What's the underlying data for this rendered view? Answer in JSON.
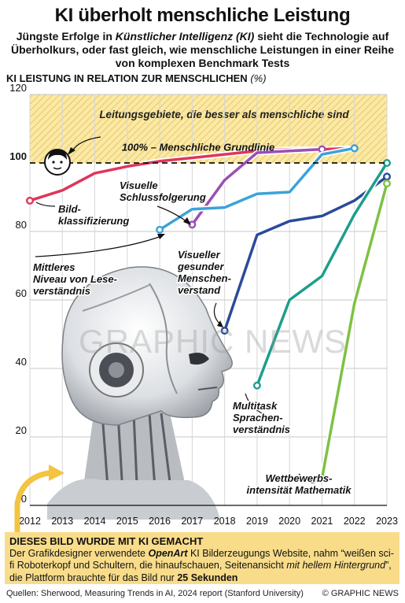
{
  "title": "KI überholt menschliche Leistung",
  "subtitle": {
    "part1": "Jüngste  Erfolge in ",
    "em": "Künstlicher Intelligenz (KI)",
    "part2": " sieht die Technologie auf Überholkurs, oder fast gleich, wie menschliche Leistungen in einer Reihe von komplexen Benchmark Tests"
  },
  "chart_label": {
    "main": "KI LEISTUNG IN RELATION ZUR MENSCHLICHEN",
    "unit": "(%)"
  },
  "chart_data": {
    "type": "line",
    "ylim": [
      0,
      120
    ],
    "xlim": [
      2012,
      2023
    ],
    "yticks": [
      0,
      20,
      40,
      60,
      80,
      100,
      120
    ],
    "x": [
      "2012",
      "2013",
      "2014",
      "2015",
      "2016",
      "2017",
      "2018",
      "2019",
      "2020",
      "2021",
      "2022",
      "2023"
    ],
    "zone_label": "Leitungsgebiete, die besser als menschliche sind",
    "baseline": {
      "value": 100,
      "label": "100% – Menschliche Grundlinie"
    },
    "series": [
      {
        "name": "Bild-\nklassifizierung",
        "color": "#e0355a",
        "points": [
          [
            2012,
            89
          ],
          [
            2013,
            92
          ],
          [
            2014,
            97
          ],
          [
            2015,
            99
          ],
          [
            2016,
            100.5
          ],
          [
            2017,
            101.5
          ],
          [
            2018,
            102.5
          ],
          [
            2019,
            103.5
          ],
          [
            2020,
            104
          ],
          [
            2021,
            104
          ],
          [
            2022,
            104.3
          ]
        ]
      },
      {
        "name": "Visuelle\nSchlussfolgerung",
        "color": "#9b4fb4",
        "points": [
          [
            2017,
            82
          ],
          [
            2018,
            95
          ],
          [
            2019,
            103
          ],
          [
            2020,
            103.5
          ],
          [
            2021,
            104
          ]
        ]
      },
      {
        "name": "Mittleres\nNiveau von Lese-\nverständnis",
        "color": "#3aa3d9",
        "points": [
          [
            2016,
            80.5
          ],
          [
            2017,
            86.5
          ],
          [
            2018,
            87
          ],
          [
            2019,
            91
          ],
          [
            2020,
            91.5
          ],
          [
            2021,
            102.5
          ],
          [
            2022,
            104.3
          ]
        ]
      },
      {
        "name": "Visueller\ngesunder\nMenschen-\nverstand",
        "color": "#2b4a9a",
        "points": [
          [
            2018,
            51
          ],
          [
            2019,
            79
          ],
          [
            2020,
            83
          ],
          [
            2021,
            84.5
          ],
          [
            2022,
            89
          ],
          [
            2023,
            96
          ]
        ]
      },
      {
        "name": "Multitask\nSprachen-\nverständnis",
        "color": "#1e9e8c",
        "points": [
          [
            2019,
            35
          ],
          [
            2020,
            60
          ],
          [
            2021,
            67
          ],
          [
            2022,
            85
          ],
          [
            2023,
            100
          ]
        ]
      },
      {
        "name": "Wettbewerbs-\nintensität Mathematik",
        "color": "#7dc242",
        "points": [
          [
            2021,
            8
          ],
          [
            2022,
            59
          ],
          [
            2023,
            94
          ]
        ]
      }
    ]
  },
  "footer": {
    "heading": "DIESES BILD WURDE MIT KI GEMACHT",
    "t1": "Der Grafikdesigner verwendete ",
    "openart": "OpenArt",
    "t2": " KI Bilderzeugungs Website, nahm “weißen sci-fi Roboterkopf und Schultern, die hinaufschauen, Seitenansicht ",
    "t3": "mit hellem Hintergrund",
    "t4": "”, die Plattform  brauchte für das Bild nur ",
    "t5": "25 Sekunden"
  },
  "sources": "Quellen: Sherwood, Measuring Trends in AI, 2024 report (Stanford University)",
  "copyright": "© GRAPHIC NEWS",
  "watermark": "GRAPHIC NEWS"
}
